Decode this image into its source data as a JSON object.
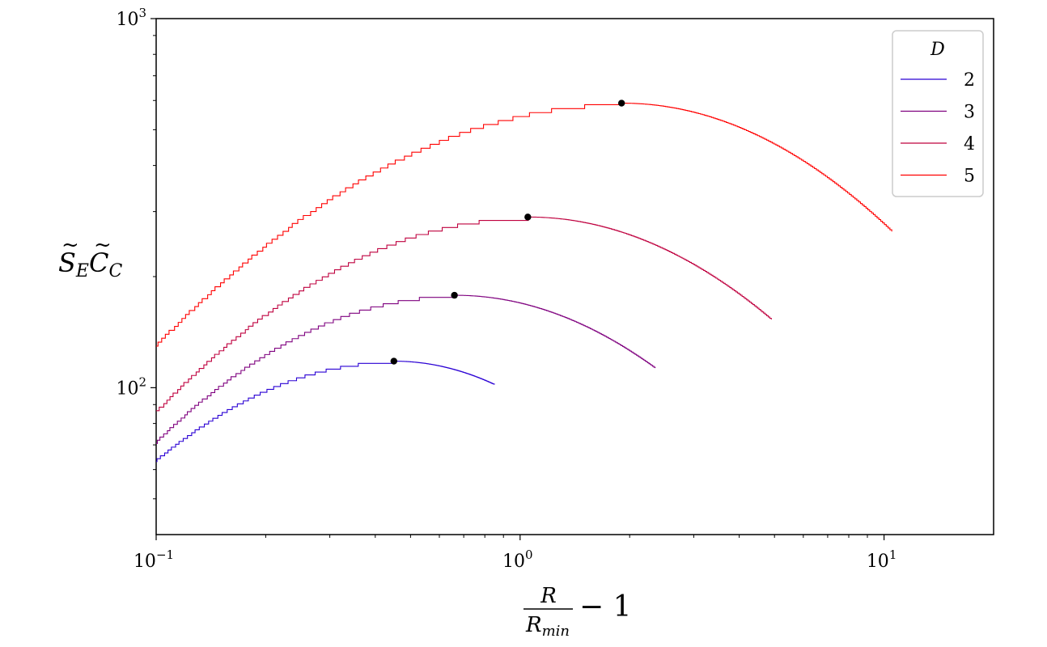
{
  "chart_data": {
    "type": "line",
    "x_scale": "log",
    "y_scale": "log",
    "xlim": [
      0.1,
      20
    ],
    "ylim": [
      40,
      1000
    ],
    "x_ticks": [
      {
        "value": 0.1,
        "base": "10",
        "exp": "−1"
      },
      {
        "value": 1,
        "base": "10",
        "exp": "0"
      },
      {
        "value": 10,
        "base": "10",
        "exp": "1"
      }
    ],
    "y_ticks": [
      {
        "value": 100,
        "base": "10",
        "exp": "2"
      },
      {
        "value": 1000,
        "base": "10",
        "exp": "3"
      }
    ],
    "xlabel": {
      "numerator": "R",
      "denominator_base": "R",
      "denominator_sub": "min",
      "suffix": "− 1"
    },
    "ylabel": {
      "s": "S",
      "s_sub": "E",
      "c": "C",
      "c_sub": "C"
    },
    "legend": {
      "title": "D",
      "position": "top-right"
    },
    "series": [
      {
        "name": "2",
        "color": "#2a00d4",
        "x_end": 0.85,
        "peak": [
          0.45,
          118
        ],
        "y_start": 64,
        "y_end": 102,
        "step_count": 55
      },
      {
        "name": "3",
        "color": "#7f007f",
        "x_end": 2.35,
        "peak": [
          0.66,
          178
        ],
        "y_start": 72,
        "y_end": 113,
        "step_count": 50
      },
      {
        "name": "4",
        "color": "#bf003f",
        "x_end": 4.9,
        "peak": [
          1.05,
          290
        ],
        "y_start": 87,
        "y_end": 153,
        "step_count": 45
      },
      {
        "name": "5",
        "color": "#ff0000",
        "x_end": 10.5,
        "peak": [
          1.9,
          590
        ],
        "y_start": 132,
        "y_end": 265,
        "step_count": 40
      }
    ]
  }
}
